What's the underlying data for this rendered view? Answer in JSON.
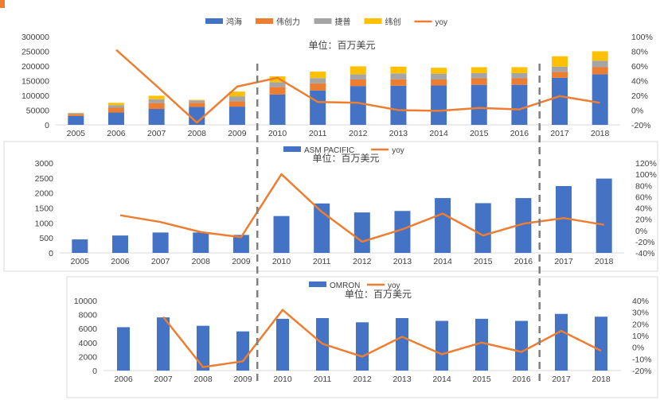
{
  "chart_data": [
    {
      "type": "bar",
      "stacked": true,
      "unit_label": "单位：百万美元",
      "legend_position": "top",
      "categories": [
        "2005",
        "2006",
        "2007",
        "2008",
        "2009",
        "2010",
        "2011",
        "2012",
        "2013",
        "2014",
        "2015",
        "2016",
        "2017",
        "2018"
      ],
      "ylim": [
        0,
        300000
      ],
      "yticks": [
        "0",
        "50000",
        "100000",
        "150000",
        "200000",
        "250000",
        "300000"
      ],
      "y2lim": [
        -20,
        100
      ],
      "y2ticks": [
        "-20%",
        "0%",
        "20%",
        "40%",
        "60%",
        "80%",
        "100%"
      ],
      "series": [
        {
          "name": "鸿海",
          "color": "#4472C4",
          "values": [
            30000,
            42000,
            54000,
            61000,
            62000,
            103000,
            117000,
            132000,
            133000,
            134000,
            136000,
            136000,
            160000,
            172000
          ]
        },
        {
          "name": "伟创力",
          "color": "#ED7D31",
          "values": [
            6000,
            16000,
            20000,
            14000,
            18000,
            26000,
            24000,
            22000,
            22000,
            20000,
            22000,
            22000,
            20000,
            24000
          ]
        },
        {
          "name": "捷普",
          "color": "#A5A5A5",
          "values": [
            4000,
            9000,
            13000,
            8000,
            17000,
            16000,
            18000,
            18000,
            20000,
            20000,
            18000,
            18000,
            18000,
            22000
          ]
        },
        {
          "name": "纬创",
          "color": "#FFC000",
          "values": [
            1000,
            8000,
            12000,
            2000,
            16000,
            20000,
            22000,
            27000,
            23000,
            20000,
            20000,
            20000,
            35000,
            32000
          ]
        }
      ],
      "line": {
        "name": "yoy",
        "color": "#ED7D31",
        "values": [
          null,
          82,
          33,
          -17,
          32,
          44,
          11,
          10,
          0,
          -1,
          3,
          1,
          19,
          10
        ]
      },
      "dividers_after": [
        "2009",
        "2016"
      ]
    },
    {
      "type": "bar",
      "unit_label": "单位：百万美元",
      "legend_position": "top",
      "categories": [
        "2005",
        "2006",
        "2007",
        "2008",
        "2009",
        "2010",
        "2011",
        "2012",
        "2013",
        "2014",
        "2015",
        "2016",
        "2017",
        "2018"
      ],
      "ylim": [
        0,
        3000
      ],
      "yticks": [
        "0",
        "500",
        "1000",
        "1500",
        "2000",
        "2500",
        "3000"
      ],
      "y2lim": [
        -40,
        120
      ],
      "y2ticks": [
        "-40%",
        "-20%",
        "0%",
        "20%",
        "40%",
        "60%",
        "80%",
        "100%",
        "120%"
      ],
      "series": [
        {
          "name": "ASM PACIFIC",
          "color": "#4472C4",
          "values": [
            450,
            580,
            680,
            680,
            600,
            1230,
            1650,
            1350,
            1400,
            1830,
            1660,
            1830,
            2230,
            2480
          ]
        }
      ],
      "line": {
        "name": "yoy",
        "color": "#ED7D31",
        "values": [
          null,
          27,
          15,
          -3,
          -12,
          100,
          33,
          -20,
          2,
          30,
          -9,
          12,
          22,
          10
        ]
      },
      "dividers_after": [
        "2009",
        "2016"
      ]
    },
    {
      "type": "bar",
      "unit_label": "单位：百万美元",
      "legend_position": "top",
      "categories": [
        "2006",
        "2007",
        "2008",
        "2009",
        "2010",
        "2011",
        "2012",
        "2013",
        "2014",
        "2015",
        "2016",
        "2017",
        "2018"
      ],
      "ylim": [
        0,
        10000
      ],
      "yticks": [
        "0",
        "2000",
        "4000",
        "6000",
        "8000",
        "10000"
      ],
      "y2lim": [
        -20,
        40
      ],
      "y2ticks": [
        "-20%",
        "-10%",
        "0%",
        "10%",
        "20%",
        "30%",
        "40%"
      ],
      "series": [
        {
          "name": "OMRON",
          "color": "#4472C4",
          "values": [
            6200,
            7600,
            6400,
            5600,
            7400,
            7500,
            6900,
            7500,
            7100,
            7400,
            7100,
            8100,
            7700
          ]
        }
      ],
      "line": {
        "name": "yoy",
        "color": "#ED7D31",
        "values": [
          null,
          26,
          -17,
          -12,
          32,
          3,
          -8,
          9,
          -6,
          4,
          -4,
          14,
          -3
        ]
      },
      "dividers_after": [
        "2009",
        "2016"
      ]
    }
  ]
}
